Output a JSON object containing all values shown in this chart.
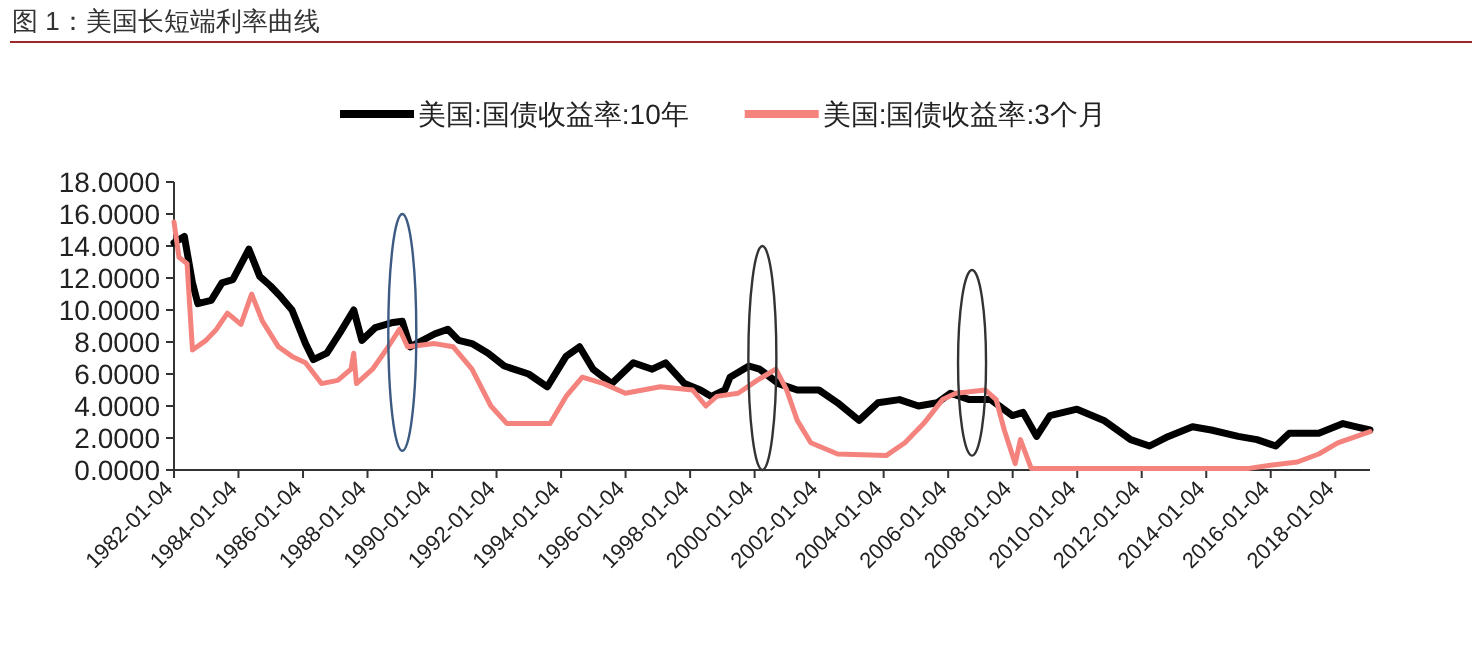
{
  "chart_data": {
    "type": "line",
    "title": "图 1：美国长短端利率曲线",
    "x": [
      "1982-01-04",
      "1982-05",
      "1982-08",
      "1982-10",
      "1983-03",
      "1983-07",
      "1983-11",
      "1984-05",
      "1984-09",
      "1985-01",
      "1985-05",
      "1985-09",
      "1986-02",
      "1986-05",
      "1986-10",
      "1987-03",
      "1987-08",
      "1987-11",
      "1988-04",
      "1988-10",
      "1989-02",
      "1989-05",
      "1990-02",
      "1990-07",
      "1990-11",
      "1991-04",
      "1991-10",
      "1992-04",
      "1993-01",
      "1993-08",
      "1994-03",
      "1994-08",
      "1995-01",
      "1995-08",
      "1996-04",
      "1996-11",
      "1997-04",
      "1997-11",
      "1998-05",
      "1998-09",
      "1999-02",
      "1999-04",
      "1999-11",
      "2000-03",
      "2000-10",
      "2001-05",
      "2002-01",
      "2002-08",
      "2003-04",
      "2003-11",
      "2004-07",
      "2005-02",
      "2005-09",
      "2006-02",
      "2006-09",
      "2007-05",
      "2008-01",
      "2008-05",
      "2008-10",
      "2009-03",
      "2010-01",
      "2010-11",
      "2011-09",
      "2012-04",
      "2012-11",
      "2013-08",
      "2014-03",
      "2015-01",
      "2015-08",
      "2016-03",
      "2016-08",
      "2017-07",
      "2018-04",
      "2018-09",
      "2019-02"
    ],
    "series": [
      {
        "name": "美国:国债收益率:10年",
        "color": "#000000",
        "values": [
          14.2,
          14.6,
          11.7,
          10.4,
          10.6,
          11.7,
          11.9,
          13.8,
          12.1,
          11.5,
          10.8,
          10.0,
          7.9,
          6.9,
          7.3,
          8.6,
          10.0,
          8.1,
          8.9,
          9.2,
          9.3,
          7.7,
          8.5,
          8.8,
          8.1,
          7.9,
          7.3,
          6.5,
          6.0,
          5.2,
          7.1,
          7.7,
          6.3,
          5.4,
          6.7,
          6.3,
          6.7,
          5.4,
          5.0,
          4.6,
          5.0,
          5.8,
          6.5,
          6.3,
          5.4,
          5.0,
          5.0,
          4.2,
          3.1,
          4.2,
          4.4,
          4.0,
          4.2,
          4.8,
          4.4,
          4.4,
          3.4,
          3.6,
          2.1,
          3.4,
          3.8,
          3.1,
          1.9,
          1.5,
          2.1,
          2.7,
          2.5,
          2.1,
          1.9,
          1.5,
          2.3,
          2.3,
          2.9,
          2.7,
          2.5
        ]
      },
      {
        "name": "美国:国债收益率:3个月",
        "color": "#f4837d",
        "x": [
          "1982-01-04",
          "1982-03",
          "1982-06",
          "1982-08",
          "1983-01",
          "1983-05",
          "1983-09",
          "1984-02",
          "1984-06",
          "1984-10",
          "1985-04",
          "1985-09",
          "1986-02",
          "1986-08",
          "1987-02",
          "1987-07",
          "1987-08",
          "1987-09",
          "1988-03",
          "1988-08",
          "1989-01",
          "1989-04",
          "1990-02",
          "1990-09",
          "1991-04",
          "1991-11",
          "1992-05",
          "1993-02",
          "1993-09",
          "1994-03",
          "1994-09",
          "1995-05",
          "1996-01",
          "1997-02",
          "1998-02",
          "1998-07",
          "1998-11",
          "1999-07",
          "2000-02",
          "2000-09",
          "2001-01",
          "2001-05",
          "2001-10",
          "2002-08",
          "2004-02",
          "2004-09",
          "2005-04",
          "2005-11",
          "2006-04",
          "2007-03",
          "2007-07",
          "2007-10",
          "2008-02",
          "2008-04",
          "2008-08",
          "2009-01",
          "2011-04",
          "2013-04",
          "2015-05",
          "2016-01",
          "2016-11",
          "2017-07",
          "2018-02",
          "2018-09",
          "2019-02"
        ],
        "values": [
          15.5,
          13.3,
          12.9,
          7.5,
          8.1,
          8.8,
          9.8,
          9.1,
          11.0,
          9.3,
          7.7,
          7.1,
          6.7,
          5.4,
          5.6,
          6.3,
          7.3,
          5.4,
          6.3,
          7.5,
          8.8,
          7.7,
          7.9,
          7.7,
          6.3,
          4.0,
          2.9,
          2.9,
          2.9,
          4.6,
          5.8,
          5.4,
          4.8,
          5.2,
          5.0,
          4.0,
          4.6,
          4.8,
          5.6,
          6.3,
          5.0,
          3.1,
          1.7,
          1.0,
          0.9,
          1.7,
          2.9,
          4.4,
          4.8,
          5.0,
          4.4,
          2.5,
          0.4,
          1.9,
          0.1,
          0.1,
          0.1,
          0.1,
          0.1,
          0.3,
          0.5,
          1.0,
          1.7,
          2.1,
          2.4
        ]
      }
    ],
    "xlim": [
      "1982-01-04",
      "2019-02-01"
    ],
    "xticks": [
      "1982-01-04",
      "1984-01-04",
      "1986-01-04",
      "1988-01-04",
      "1990-01-04",
      "1992-01-04",
      "1994-01-04",
      "1996-01-04",
      "1998-01-04",
      "2000-01-04",
      "2002-01-04",
      "2004-01-04",
      "2006-01-04",
      "2008-01-04",
      "2010-01-04",
      "2012-01-04",
      "2014-01-04",
      "2016-01-04",
      "2018-01-04"
    ],
    "ylim": [
      0,
      18
    ],
    "yticks": [
      {
        "value": 0,
        "label": "0.0000"
      },
      {
        "value": 2,
        "label": "2.0000"
      },
      {
        "value": 4,
        "label": "4.0000"
      },
      {
        "value": 6,
        "label": "6.0000"
      },
      {
        "value": 8,
        "label": "8.0000"
      },
      {
        "value": 10,
        "label": "10.0000"
      },
      {
        "value": 12,
        "label": "12.0000"
      },
      {
        "value": 14,
        "label": "14.0000"
      },
      {
        "value": 16,
        "label": "16.0000"
      },
      {
        "value": 18,
        "label": "18.0000"
      }
    ],
    "legend": "top",
    "grid": false,
    "marker": "none",
    "line_style": "solid"
  }
}
